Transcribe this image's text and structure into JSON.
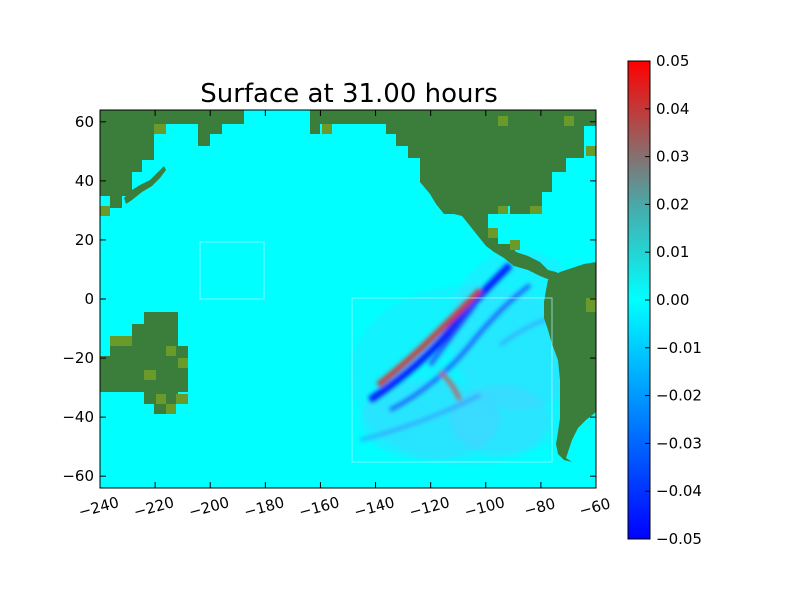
{
  "chart_data": {
    "type": "heatmap",
    "title": "Surface at 31.00 hours",
    "xlabel": "",
    "ylabel": "",
    "xlim": [
      -240,
      -60
    ],
    "ylim": [
      -64,
      64
    ],
    "x_ticks": [
      -240,
      -220,
      -200,
      -180,
      -160,
      -140,
      -120,
      -100,
      -80,
      -60
    ],
    "y_ticks": [
      -60,
      -40,
      -20,
      0,
      20,
      40,
      60
    ],
    "x_tick_labels": [
      "−240",
      "−220",
      "−200",
      "−180",
      "−160",
      "−140",
      "−120",
      "−100",
      "−80",
      "−60"
    ],
    "y_tick_labels": [
      "−60",
      "−40",
      "−20",
      "0",
      "20",
      "40",
      "60"
    ],
    "colorbar": {
      "range": [
        -0.05,
        0.05
      ],
      "ticks": [
        "0.05",
        "0.04",
        "0.03",
        "0.02",
        "0.01",
        "0.00",
        "−0.01",
        "−0.02",
        "−0.03",
        "−0.04",
        "−0.05"
      ],
      "colors": [
        "#0000ff",
        "#00ffff",
        "#ff0000"
      ]
    },
    "background_value": 0.0,
    "land_color": "#3b7d3b",
    "wave_crests": [
      {
        "lon": [
          -145,
          -128,
          -110,
          -95
        ],
        "lat": [
          -40,
          -25,
          -8,
          5
        ],
        "value": -0.045
      },
      {
        "lon": [
          -140,
          -125,
          -115
        ],
        "lat": [
          -30,
          -18,
          -8
        ],
        "value": 0.035
      },
      {
        "lon": [
          -135,
          -118,
          -100
        ],
        "lat": [
          -38,
          -22,
          -5
        ],
        "value": -0.03
      }
    ],
    "grid": false
  }
}
